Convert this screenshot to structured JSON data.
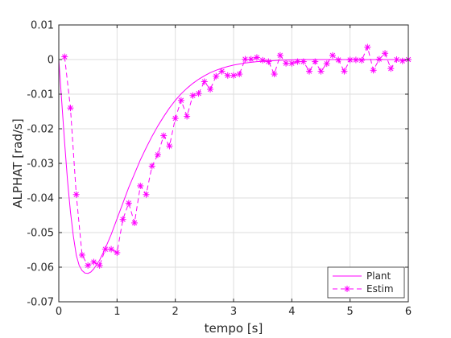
{
  "chart_data": {
    "type": "line",
    "title": "",
    "xlabel": "tempo [s]",
    "ylabel": "ALPHAT [rad/s]",
    "xlim": [
      0,
      6
    ],
    "ylim": [
      -0.07,
      0.01
    ],
    "xticks": [
      0,
      1,
      2,
      3,
      4,
      5,
      6
    ],
    "xtick_labels": [
      "0",
      "1",
      "2",
      "3",
      "4",
      "5",
      "6"
    ],
    "yticks": [
      0.01,
      0,
      -0.01,
      -0.02,
      -0.03,
      -0.04,
      -0.05,
      -0.06,
      -0.07
    ],
    "ytick_labels": [
      "0.01",
      "0",
      "-0.01",
      "-0.02",
      "-0.03",
      "-0.04",
      "-0.05",
      "-0.06",
      "-0.07"
    ],
    "grid": true,
    "legend_position": "bottom-right",
    "series": [
      {
        "name": "Plant",
        "color": "#ff00ff",
        "style": "solid",
        "marker": "none",
        "x": [
          0,
          0.05,
          0.1,
          0.15,
          0.2,
          0.25,
          0.3,
          0.35,
          0.4,
          0.45,
          0.5,
          0.55,
          0.6,
          0.7,
          0.8,
          0.9,
          1.0,
          1.1,
          1.2,
          1.3,
          1.4,
          1.5,
          1.6,
          1.7,
          1.8,
          1.9,
          2.0,
          2.1,
          2.2,
          2.3,
          2.4,
          2.5,
          2.6,
          2.7,
          2.8,
          2.9,
          3.0,
          3.2,
          3.4,
          3.6,
          3.8,
          4.0,
          4.2,
          4.5,
          5.0,
          5.5,
          6.0
        ],
        "y": [
          0,
          -0.012,
          -0.024,
          -0.035,
          -0.044,
          -0.051,
          -0.0565,
          -0.0595,
          -0.061,
          -0.0617,
          -0.0618,
          -0.0614,
          -0.0605,
          -0.058,
          -0.0545,
          -0.0505,
          -0.046,
          -0.0415,
          -0.037,
          -0.033,
          -0.029,
          -0.0255,
          -0.0222,
          -0.0192,
          -0.0165,
          -0.014,
          -0.0118,
          -0.0099,
          -0.0083,
          -0.0069,
          -0.0057,
          -0.0047,
          -0.0038,
          -0.0031,
          -0.0025,
          -0.002,
          -0.0016,
          -0.001,
          -0.0006,
          -0.0004,
          -0.0002,
          -0.0001,
          0,
          0,
          0,
          0,
          0
        ]
      },
      {
        "name": "Estim",
        "color": "#ff00ff",
        "style": "dashed",
        "marker": "asterisk",
        "x": [
          0.1,
          0.2,
          0.3,
          0.4,
          0.5,
          0.6,
          0.7,
          0.8,
          0.9,
          1.0,
          1.1,
          1.2,
          1.3,
          1.4,
          1.5,
          1.6,
          1.7,
          1.8,
          1.9,
          2.0,
          2.1,
          2.2,
          2.3,
          2.4,
          2.5,
          2.6,
          2.7,
          2.8,
          2.9,
          3.0,
          3.1,
          3.2,
          3.3,
          3.4,
          3.5,
          3.6,
          3.7,
          3.8,
          3.9,
          4.0,
          4.1,
          4.2,
          4.3,
          4.4,
          4.5,
          4.6,
          4.7,
          4.8,
          4.9,
          5.0,
          5.1,
          5.2,
          5.3,
          5.4,
          5.5,
          5.6,
          5.7,
          5.8,
          5.9,
          6.0
        ],
        "y": [
          0.0008,
          -0.014,
          -0.039,
          -0.0565,
          -0.0595,
          -0.0585,
          -0.0595,
          -0.0548,
          -0.0548,
          -0.0558,
          -0.0462,
          -0.0415,
          -0.0472,
          -0.0365,
          -0.039,
          -0.0308,
          -0.0275,
          -0.022,
          -0.025,
          -0.017,
          -0.0118,
          -0.0164,
          -0.0104,
          -0.0098,
          -0.0064,
          -0.0086,
          -0.0048,
          -0.0034,
          -0.0046,
          -0.0046,
          -0.0042,
          0.0001,
          0.0001,
          0.0006,
          -0.0002,
          -0.0006,
          -0.0042,
          0.0012,
          -0.0011,
          -0.0011,
          -0.0006,
          -0.0006,
          -0.0034,
          -0.0006,
          -0.0034,
          -0.0012,
          0.0012,
          -0.0001,
          -0.0034,
          -0.0001,
          -0.0001,
          -0.0002,
          0.0036,
          -0.0031,
          0.0001,
          0.0018,
          -0.0026,
          0,
          -0.0004,
          0
        ]
      }
    ]
  }
}
